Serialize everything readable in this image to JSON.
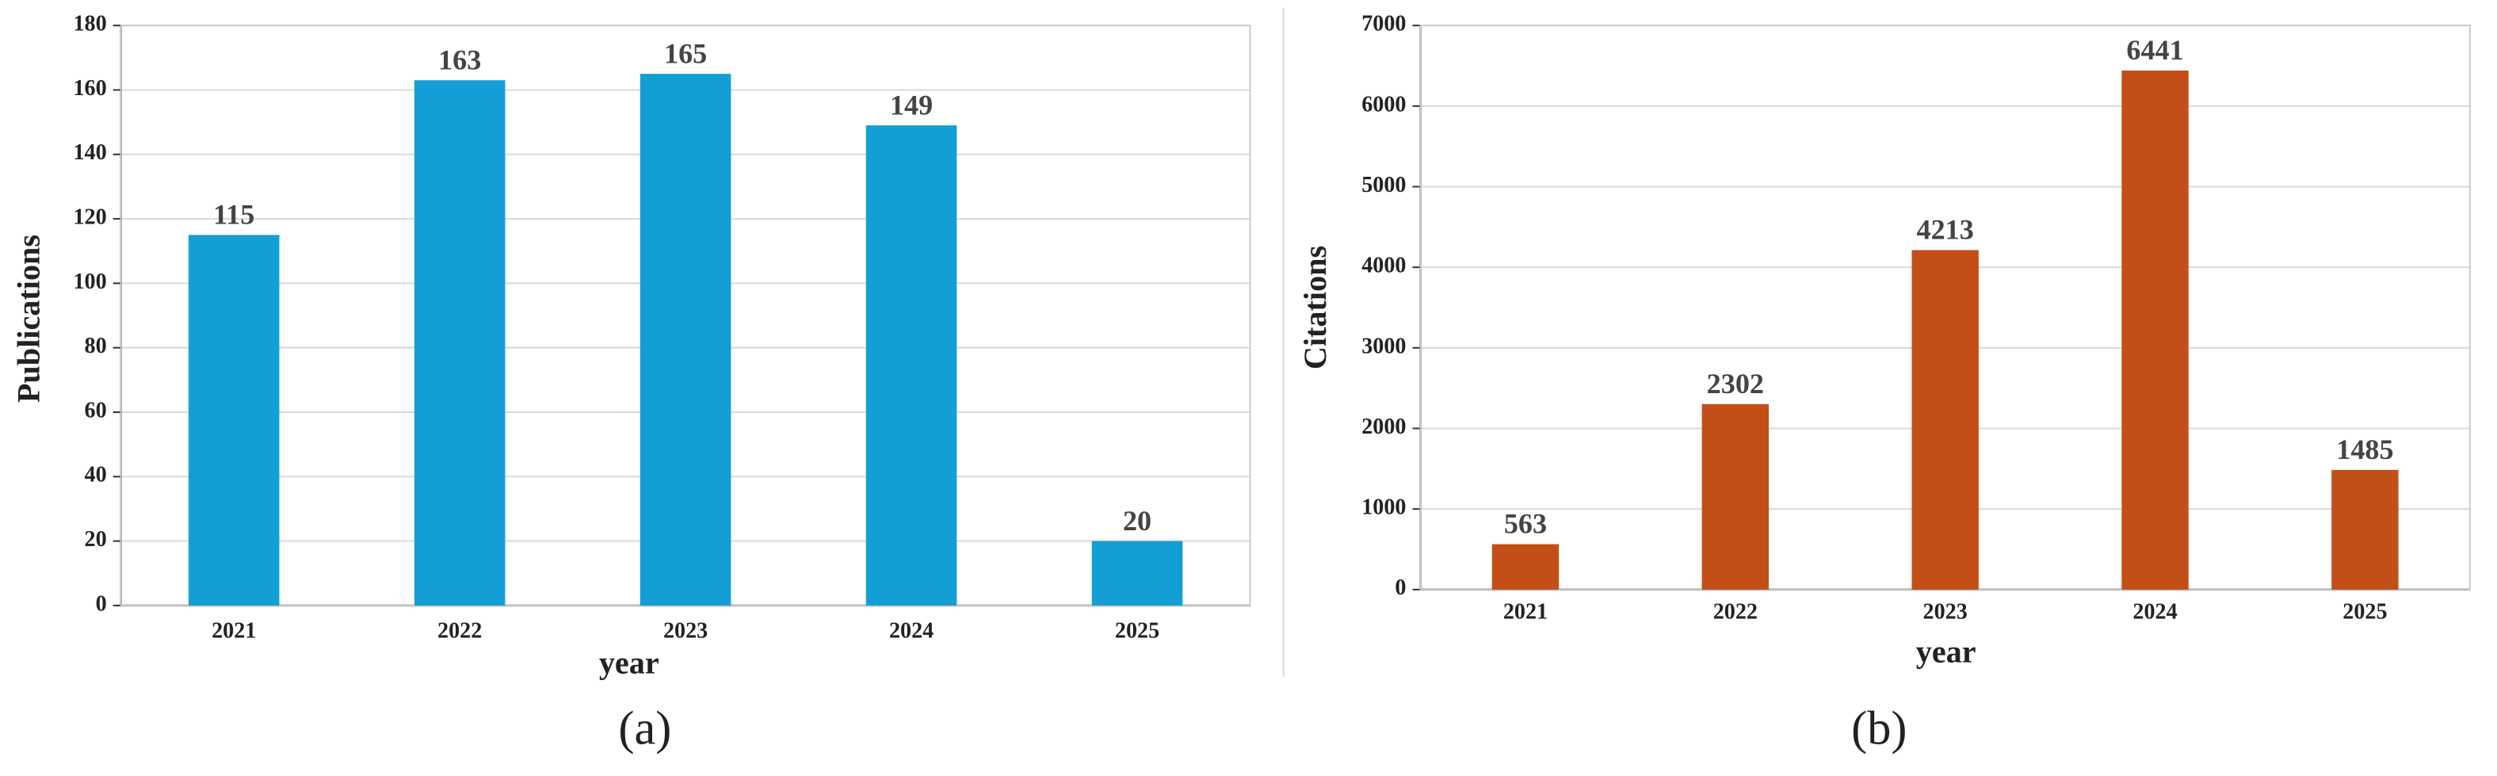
{
  "chart_data": [
    {
      "type": "bar",
      "caption": "(a)",
      "x_label": "year",
      "y_label": "Publications",
      "categories": [
        "2021",
        "2022",
        "2023",
        "2024",
        "2025"
      ],
      "values": [
        115,
        163,
        165,
        149,
        20
      ],
      "color": "#139ed6",
      "ylim": [
        0,
        180
      ],
      "yticks": [
        0,
        20,
        40,
        60,
        80,
        100,
        120,
        140,
        160,
        180
      ],
      "grid": true
    },
    {
      "type": "bar",
      "caption": "(b)",
      "x_label": "year",
      "y_label": "Citations",
      "categories": [
        "2021",
        "2022",
        "2023",
        "2024",
        "2025"
      ],
      "values": [
        563,
        2302,
        4213,
        6441,
        1485
      ],
      "color": "#c24f17",
      "ylim": [
        0,
        7000
      ],
      "yticks": [
        0,
        1000,
        2000,
        3000,
        4000,
        5000,
        6000,
        7000
      ],
      "grid": true
    }
  ]
}
